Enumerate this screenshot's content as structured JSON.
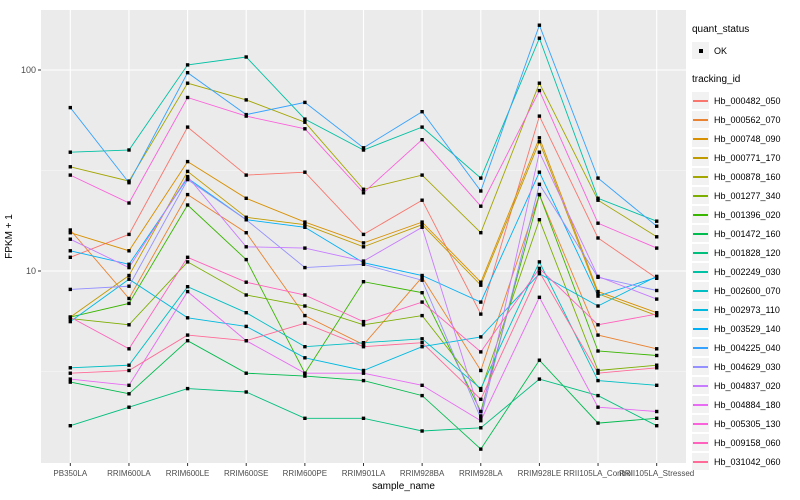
{
  "chart_data": {
    "type": "line",
    "title": "",
    "xlabel": "sample_name",
    "ylabel": "FPKM + 1",
    "y_scale": "log10",
    "ylim": [
      1.11,
      199
    ],
    "y_ticks": [
      10,
      100
    ],
    "y_tick_labels": [
      "10",
      "100"
    ],
    "y_minor_ticks": [
      3.162,
      31.62
    ],
    "grid": "on",
    "legend_position": "right",
    "point_shape": "filled-black-square",
    "categories": [
      "PB350LA",
      "RRIM600LA",
      "RRIM600LE",
      "RRIM600SE",
      "RRIM600PE",
      "RRIM901LA",
      "RRIM928BA",
      "RRIM928LA",
      "RRIM928LE",
      "RRII105LA_Control",
      "RRII105LA_Stressed"
    ],
    "series": [
      {
        "name": "Hb_000482_050",
        "color": "#F8766D",
        "values": [
          11.7,
          15.2,
          52,
          30,
          31,
          15.2,
          22.5,
          6.1,
          59,
          14.6,
          9.2
        ]
      },
      {
        "name": "Hb_000562_070",
        "color": "#EA8331",
        "values": [
          16,
          7.3,
          24,
          15.5,
          6.0,
          4.3,
          9.3,
          3.2,
          24,
          4.8,
          4.1
        ]
      },
      {
        "name": "Hb_000748_090",
        "color": "#D89000",
        "values": [
          15.5,
          12.6,
          35,
          23,
          17.5,
          13.8,
          17.5,
          8.8,
          46,
          7.9,
          6.2
        ]
      },
      {
        "name": "Hb_000771_170",
        "color": "#C09B00",
        "values": [
          5.9,
          9.5,
          31.3,
          18.5,
          17,
          13.2,
          17,
          8.5,
          44,
          7.7,
          6.0
        ]
      },
      {
        "name": "Hb_000878_160",
        "color": "#A3A500",
        "values": [
          33,
          28,
          86,
          71,
          55,
          25.5,
          30,
          15.5,
          86,
          22.5,
          14.8
        ]
      },
      {
        "name": "Hb_001277_340",
        "color": "#7CAE00",
        "values": [
          5.8,
          5.4,
          11.1,
          7.6,
          6.7,
          5.4,
          6.0,
          2.55,
          18,
          3.2,
          3.4
        ]
      },
      {
        "name": "Hb_001396_020",
        "color": "#39B600",
        "values": [
          5.9,
          6.9,
          21.3,
          11.4,
          3.1,
          8.85,
          7.8,
          2.0,
          24,
          4.0,
          3.8
        ]
      },
      {
        "name": "Hb_001472_160",
        "color": "#00BB4E",
        "values": [
          2.8,
          2.45,
          4.5,
          3.1,
          3.0,
          2.85,
          2.4,
          1.3,
          3.6,
          1.75,
          1.85
        ]
      },
      {
        "name": "Hb_001828_120",
        "color": "#00BF7D",
        "values": [
          1.7,
          2.1,
          2.6,
          2.5,
          1.85,
          1.85,
          1.6,
          1.66,
          2.9,
          2.4,
          1.7
        ]
      },
      {
        "name": "Hb_002249_030",
        "color": "#00C1A3",
        "values": [
          39,
          40,
          106,
          116,
          57,
          40,
          52,
          29,
          144,
          23,
          17.7
        ]
      },
      {
        "name": "Hb_002600_070",
        "color": "#00BFC4",
        "values": [
          3.3,
          3.4,
          8.35,
          6.2,
          4.2,
          4.4,
          4.6,
          2.6,
          11.1,
          2.85,
          2.7
        ]
      },
      {
        "name": "Hb_002973_110",
        "color": "#00BAE0",
        "values": [
          5.6,
          9.1,
          5.85,
          5.3,
          3.7,
          3.2,
          4.2,
          4.7,
          9.7,
          6.7,
          9.4
        ]
      },
      {
        "name": "Hb_003529_140",
        "color": "#00B0F6",
        "values": [
          12.6,
          10.8,
          29,
          18,
          16.5,
          11,
          9.5,
          7.0,
          31,
          7.5,
          9.3
        ]
      },
      {
        "name": "Hb_004225_040",
        "color": "#35A2FF",
        "values": [
          65,
          27.5,
          97,
          60,
          69,
          41,
          62,
          25,
          167,
          29,
          16.7
        ]
      },
      {
        "name": "Hb_004629_030",
        "color": "#9590FF",
        "values": [
          8.1,
          8.4,
          28.5,
          18,
          10.4,
          10.8,
          9.0,
          1.85,
          27,
          9.3,
          8.0
        ]
      },
      {
        "name": "Hb_004837_020",
        "color": "#C77CFF",
        "values": [
          14.4,
          10.4,
          29.5,
          13.2,
          13,
          11.2,
          16.5,
          1.9,
          39,
          9.4,
          7.25
        ]
      },
      {
        "name": "Hb_004884_180",
        "color": "#E76BF3",
        "values": [
          2.9,
          2.7,
          7.9,
          4.5,
          3.1,
          3.1,
          2.7,
          1.8,
          7.4,
          2.1,
          2.0
        ]
      },
      {
        "name": "Hb_005305_130",
        "color": "#FA62DB",
        "values": [
          30,
          21.8,
          73,
          59,
          51,
          24.5,
          45,
          21,
          79,
          17.3,
          13.0
        ]
      },
      {
        "name": "Hb_009158_060",
        "color": "#FF62BC",
        "values": [
          5.9,
          4.1,
          11.7,
          8.8,
          7.6,
          5.6,
          7.0,
          3.96,
          10.3,
          5.4,
          6.1
        ]
      },
      {
        "name": "Hb_031042_060",
        "color": "#FF6A98",
        "values": [
          3.1,
          3.2,
          4.8,
          4.5,
          5.5,
          4.2,
          4.4,
          2.3,
          9.9,
          3.1,
          3.3
        ]
      }
    ],
    "legend": {
      "quant_title": "quant_status",
      "quant_items": [
        {
          "label": "OK"
        }
      ],
      "tracking_title": "tracking_id"
    },
    "colors": {
      "panel_bg": "#EBEBEB",
      "grid_major": "#FFFFFF",
      "grid_minor": "#F5F5F5",
      "axis_text": "#4D4D4D",
      "axis_title": "#000000",
      "tick_mark": "#333333",
      "point": "#000000",
      "legend_key_bg": "#F2F2F2"
    }
  }
}
